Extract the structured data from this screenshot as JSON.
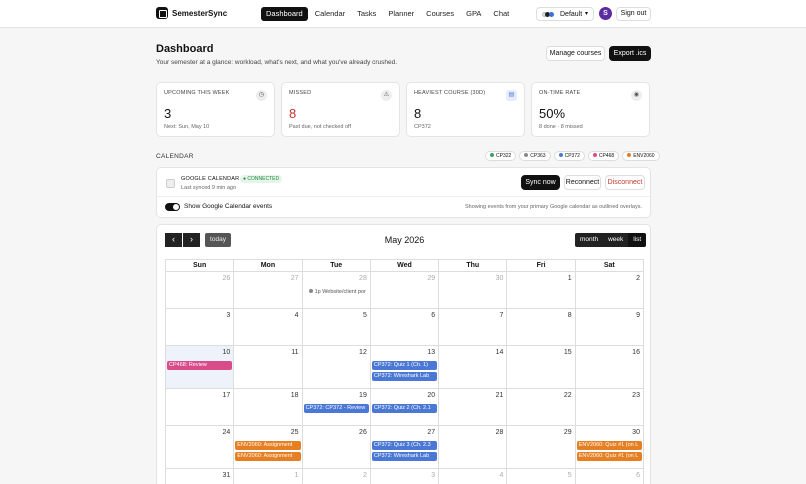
{
  "app": {
    "name": "SemesterSync"
  },
  "nav": {
    "links": [
      "Dashboard",
      "Calendar",
      "Tasks",
      "Planner",
      "Courses",
      "GPA",
      "Chat"
    ],
    "active": "Dashboard",
    "theme_label": "Default",
    "avatar_initial": "S",
    "signout_label": "Sign out"
  },
  "header": {
    "title": "Dashboard",
    "subtitle": "Your semester at a glance: workload, what's next, and what you've already crushed.",
    "manage_courses_label": "Manage courses",
    "export_label": "Export .ics"
  },
  "stats": [
    {
      "title": "UPCOMING THIS WEEK",
      "value": "3",
      "note": "Next: Sun, May 10",
      "icon": "clock-icon",
      "value_color": "#111111"
    },
    {
      "title": "MISSED",
      "value": "8",
      "note": "Past due, not checked off",
      "icon": "warning-icon",
      "value_color": "#c0392b"
    },
    {
      "title": "HEAVIEST COURSE (30D)",
      "value": "8",
      "note": "CP372",
      "icon": "stack-icon",
      "value_color": "#111111"
    },
    {
      "title": "ON-TIME RATE",
      "value": "50%",
      "note": "8 done · 8 missed",
      "icon": "target-icon",
      "value_color": "#111111"
    }
  ],
  "calendar_section": {
    "label": "CALENDAR",
    "courses": [
      {
        "code": "CP322",
        "color": "#3aa25a"
      },
      {
        "code": "CP363",
        "color": "#8a8a8a"
      },
      {
        "code": "CP372",
        "color": "#4a78d4"
      },
      {
        "code": "CP468",
        "color": "#d94c8a"
      },
      {
        "code": "ENV2060",
        "color": "#e67e22"
      }
    ]
  },
  "google": {
    "name": "GOOGLE CALENDAR",
    "status": "● CONNECTED",
    "synced": "Last synced 9 min ago",
    "sync_now": "Sync now",
    "reconnect": "Reconnect",
    "disconnect": "Disconnect",
    "toggle_label": "Show Google Calendar events",
    "toggle_on": true,
    "note": "Showing events from your primary Google calendar as outlined overlays."
  },
  "calendar": {
    "prev": "‹",
    "next": "›",
    "today_label": "today",
    "month_title": "May 2026",
    "views": [
      "month",
      "week",
      "list"
    ],
    "active_view": "list",
    "weekdays": [
      "Sun",
      "Mon",
      "Tue",
      "Wed",
      "Thu",
      "Fri",
      "Sat"
    ],
    "weeks": [
      {
        "days": [
          {
            "n": "26",
            "other": true,
            "events": []
          },
          {
            "n": "27",
            "other": true,
            "events": []
          },
          {
            "n": "28",
            "other": true,
            "events": [
              {
                "label": "1p Website/client por",
                "color": "#888888",
                "style": "dot"
              }
            ]
          },
          {
            "n": "29",
            "other": true,
            "events": []
          },
          {
            "n": "30",
            "other": true,
            "events": []
          },
          {
            "n": "1",
            "events": []
          },
          {
            "n": "2",
            "events": []
          }
        ]
      },
      {
        "days": [
          {
            "n": "3",
            "events": []
          },
          {
            "n": "4",
            "events": []
          },
          {
            "n": "5",
            "events": []
          },
          {
            "n": "6",
            "events": []
          },
          {
            "n": "7",
            "events": []
          },
          {
            "n": "8",
            "events": []
          },
          {
            "n": "9",
            "events": []
          }
        ]
      },
      {
        "days": [
          {
            "n": "10",
            "today": true,
            "events": [
              {
                "label": "CP468: Review",
                "color": "#d94c8a"
              }
            ]
          },
          {
            "n": "11",
            "events": []
          },
          {
            "n": "12",
            "events": []
          },
          {
            "n": "13",
            "events": [
              {
                "label": "CP372: Quiz 1 (Ch. 1)",
                "color": "#4a78d4"
              },
              {
                "label": "CP372: Wireshark Lab",
                "color": "#4a78d4"
              }
            ]
          },
          {
            "n": "14",
            "events": []
          },
          {
            "n": "15",
            "events": []
          },
          {
            "n": "16",
            "events": []
          }
        ]
      },
      {
        "days": [
          {
            "n": "17",
            "events": []
          },
          {
            "n": "18",
            "events": []
          },
          {
            "n": "19",
            "events": [
              {
                "label": "CP372: CP372 - Review",
                "color": "#4a78d4"
              }
            ]
          },
          {
            "n": "20",
            "events": [
              {
                "label": "CP372: Quiz 2 (Ch. 2.1",
                "color": "#4a78d4"
              }
            ]
          },
          {
            "n": "21",
            "events": []
          },
          {
            "n": "22",
            "events": []
          },
          {
            "n": "23",
            "events": []
          }
        ]
      },
      {
        "days": [
          {
            "n": "24",
            "events": []
          },
          {
            "n": "25",
            "events": [
              {
                "label": "ENV2060: Assignment",
                "color": "#e67e22"
              },
              {
                "label": "ENV2060: Assignment",
                "color": "#e67e22"
              }
            ]
          },
          {
            "n": "26",
            "events": []
          },
          {
            "n": "27",
            "events": [
              {
                "label": "CP372: Quiz 3 (Ch. 2.3",
                "color": "#4a78d4"
              },
              {
                "label": "CP372: Wireshark Lab",
                "color": "#4a78d4"
              }
            ]
          },
          {
            "n": "28",
            "events": []
          },
          {
            "n": "29",
            "events": []
          },
          {
            "n": "30",
            "events": [
              {
                "label": "ENV2060: Quiz #1 (on L",
                "color": "#e67e22"
              },
              {
                "label": "ENV2060: Quiz #1 (on L",
                "color": "#e67e22"
              }
            ]
          }
        ]
      },
      {
        "days": [
          {
            "n": "31",
            "events": []
          },
          {
            "n": "1",
            "other": true,
            "events": []
          },
          {
            "n": "2",
            "other": true,
            "events": []
          },
          {
            "n": "3",
            "other": true,
            "events": [
              {
                "label": "",
                "color": "#4a78d4"
              }
            ]
          },
          {
            "n": "4",
            "other": true,
            "events": []
          },
          {
            "n": "5",
            "other": true,
            "events": []
          },
          {
            "n": "6",
            "other": true,
            "events": []
          }
        ]
      }
    ]
  }
}
